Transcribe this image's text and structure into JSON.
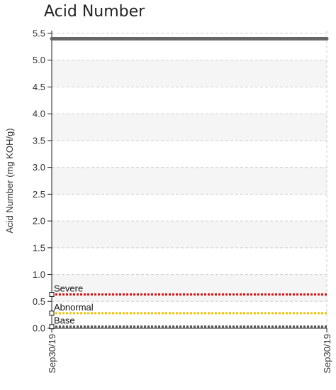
{
  "chart_data": {
    "type": "line",
    "title": "Acid Number",
    "ylabel": "Acid Number (mg KOH/g)",
    "xlabel": "",
    "ylim": [
      0,
      5.5
    ],
    "yticks": [
      "0.0",
      "0.5",
      "1.0",
      "1.5",
      "2.0",
      "2.5",
      "3.0",
      "3.5",
      "4.0",
      "4.5",
      "5.0",
      "5.5"
    ],
    "x_categories": [
      "Sep30/19",
      "Sep30/19"
    ],
    "grid": true,
    "series": [
      {
        "values": [
          5.4,
          5.4
        ],
        "color": "#666666"
      }
    ],
    "limits": [
      {
        "name": "Severe",
        "value": 0.63,
        "color": "#e01010",
        "style": "dotted"
      },
      {
        "name": "Abnormal",
        "value": 0.28,
        "color": "#f2c200",
        "style": "dotted"
      },
      {
        "name": "Base",
        "value": 0.03,
        "color": "#555555",
        "style": "dotted"
      }
    ]
  }
}
